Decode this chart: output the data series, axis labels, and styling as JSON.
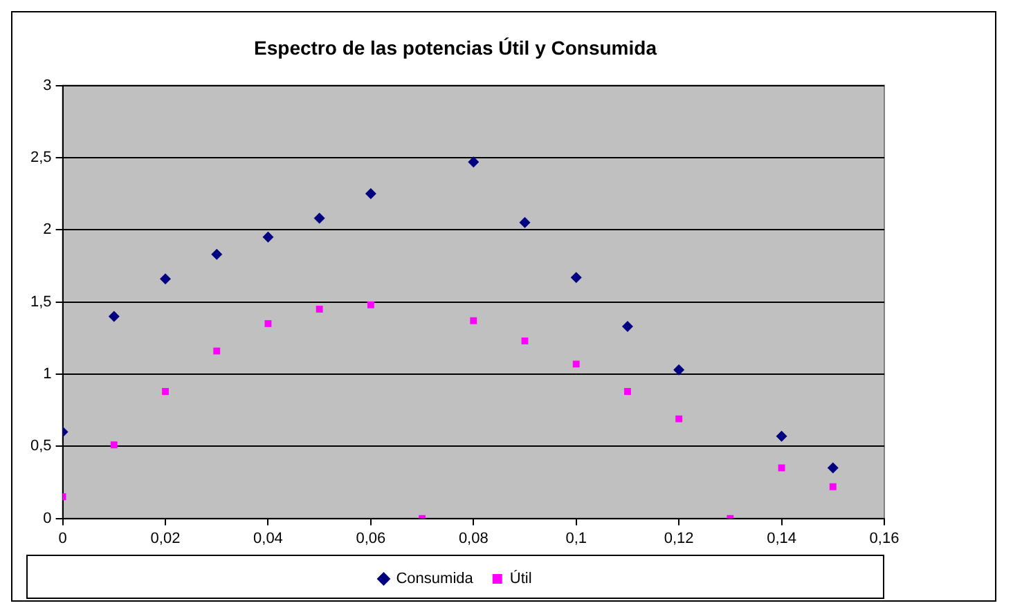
{
  "chart_data": {
    "type": "scatter",
    "title": "Espectro de las potencias Útil y Consumida",
    "xlim": [
      0,
      0.16
    ],
    "xticks": [
      {
        "value": 0,
        "label": "0"
      },
      {
        "value": 0.02,
        "label": "0,02"
      },
      {
        "value": 0.04,
        "label": "0,04"
      },
      {
        "value": 0.06,
        "label": "0,06"
      },
      {
        "value": 0.08,
        "label": "0,08"
      },
      {
        "value": 0.1,
        "label": "0,1"
      },
      {
        "value": 0.12,
        "label": "0,12"
      },
      {
        "value": 0.14,
        "label": "0,14"
      },
      {
        "value": 0.16,
        "label": "0,16"
      }
    ],
    "ylim": [
      0,
      3
    ],
    "yticks": [
      0,
      {
        "value": 0.5,
        "label": "0,5"
      },
      1,
      {
        "value": 1.5,
        "label": "1,5"
      },
      2,
      {
        "value": 2.5,
        "label": "2,5"
      },
      3
    ],
    "grid": "y",
    "legend": "bottom",
    "series": [
      {
        "name": "Consumida",
        "color": "#000080",
        "marker": "diamond",
        "x": [
          0,
          0.01,
          0.02,
          0.03,
          0.04,
          0.05,
          0.06,
          0.08,
          0.09,
          0.1,
          0.11,
          0.12,
          0.14,
          0.15
        ],
        "values": [
          0.6,
          1.4,
          1.66,
          1.83,
          1.95,
          2.08,
          2.25,
          2.47,
          2.05,
          1.67,
          1.33,
          1.03,
          0.57,
          0.35
        ]
      },
      {
        "name": "Útil",
        "color": "#ff00ff",
        "marker": "square",
        "x": [
          0,
          0.01,
          0.02,
          0.03,
          0.04,
          0.05,
          0.06,
          0.07,
          0.08,
          0.09,
          0.1,
          0.11,
          0.12,
          0.13,
          0.14,
          0.15
        ],
        "values": [
          0.15,
          0.51,
          0.88,
          1.16,
          1.35,
          1.45,
          1.48,
          0,
          1.37,
          1.23,
          1.07,
          0.88,
          0.69,
          0,
          0.35,
          0.22
        ]
      }
    ]
  }
}
